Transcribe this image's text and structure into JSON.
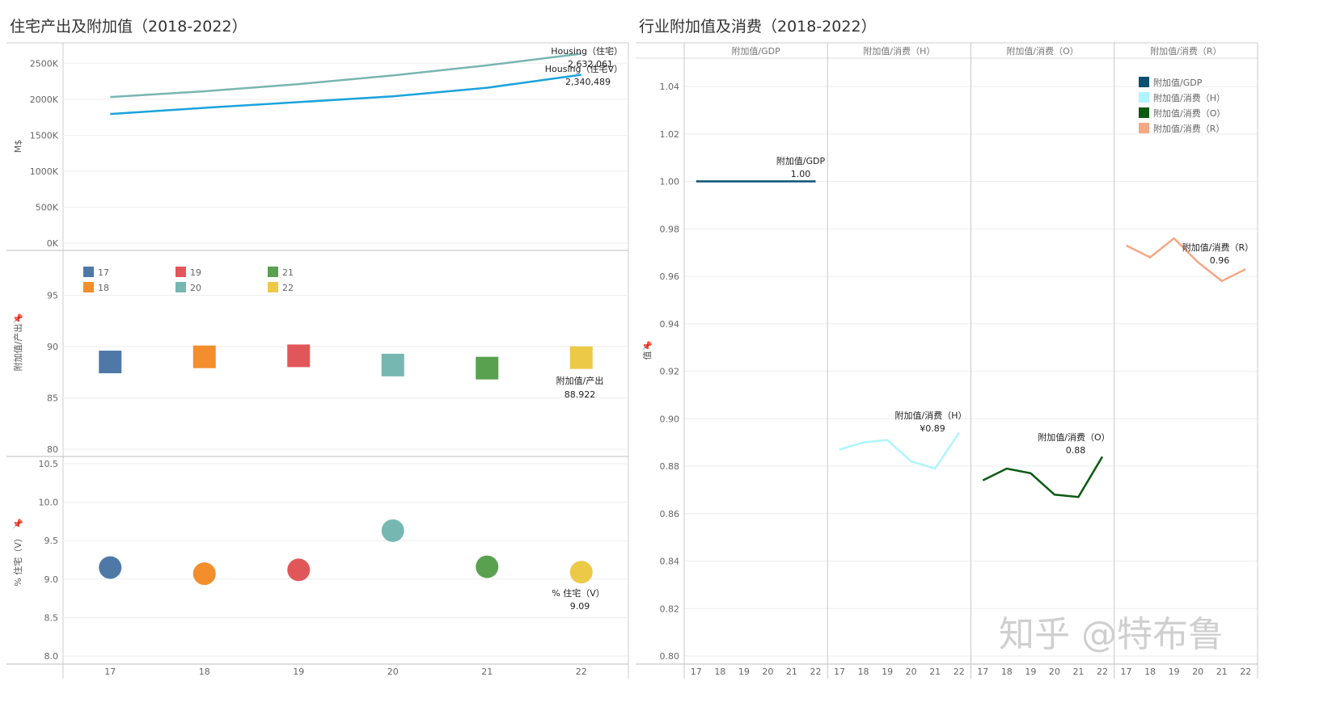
{
  "left_title": "住宅产出及附加值（2018-2022）",
  "right_title": "行业附加值及消费（2018-2022）",
  "watermark": "知乎 @特布鲁",
  "chart_data": [
    {
      "type": "line",
      "ylabel": "M$",
      "x": [
        "17",
        "18",
        "19",
        "20",
        "21",
        "22"
      ],
      "yticks": [
        "2500K",
        "2000K",
        "1500K",
        "1000K",
        "500K",
        "0K"
      ],
      "ylim": [
        0,
        2750
      ],
      "series": [
        {
          "name": "Housing（住宅）",
          "color": "#79b5b0",
          "values": [
            2030,
            2110,
            2210,
            2330,
            2470,
            2632.061
          ],
          "label_value": "2,632,061"
        },
        {
          "name": "Housing（住宅V）",
          "color": "#1aa2dc",
          "values": [
            1795,
            1880,
            1960,
            2040,
            2160,
            2340.489
          ],
          "label_value": "2,340,489"
        }
      ]
    },
    {
      "type": "scatter",
      "shape": "square",
      "ylabel": "附加值/产出",
      "x": [
        "17",
        "18",
        "19",
        "20",
        "21",
        "22"
      ],
      "yticks": [
        "95",
        "90",
        "85",
        "80"
      ],
      "ylim": [
        80,
        100
      ],
      "legend": [
        "17",
        "18",
        "19",
        "20",
        "21",
        "22"
      ],
      "colors": [
        "#4e79a7",
        "#f28e2b",
        "#e15759",
        "#76b7b2",
        "#59a14f",
        "#edc948"
      ],
      "values": [
        88.5,
        89.0,
        89.1,
        88.2,
        87.9,
        88.922
      ],
      "end_label": "附加值/产出",
      "end_value": "88.922"
    },
    {
      "type": "scatter",
      "shape": "circle",
      "ylabel": "% 住宅（V）",
      "x": [
        "17",
        "18",
        "19",
        "20",
        "21",
        "22"
      ],
      "xticks": [
        "17",
        "18",
        "19",
        "20",
        "21",
        "22"
      ],
      "yticks": [
        "10.5",
        "10.0",
        "9.5",
        "9.0",
        "8.5",
        "8.0"
      ],
      "ylim": [
        8.0,
        10.5
      ],
      "colors": [
        "#4e79a7",
        "#f28e2b",
        "#e15759",
        "#76b7b2",
        "#59a14f",
        "#edc948"
      ],
      "values": [
        9.15,
        9.07,
        9.12,
        9.63,
        9.16,
        9.09
      ],
      "end_label": "% 住宅（V）",
      "end_value": "9.09"
    },
    {
      "type": "line",
      "ylabel": "值",
      "yticks": [
        "1.04",
        "1.02",
        "1.00",
        "0.98",
        "0.96",
        "0.94",
        "0.92",
        "0.90",
        "0.88",
        "0.86",
        "0.84",
        "0.82",
        "0.80"
      ],
      "ylim": [
        0.8,
        1.055
      ],
      "x": [
        "17",
        "18",
        "19",
        "20",
        "21",
        "22"
      ],
      "panels": [
        "附加值/GDP",
        "附加值/消费（H）",
        "附加值/消费（O）",
        "附加值/消费（R）"
      ],
      "legend": [
        "附加值/GDP",
        "附加值/消费（H）",
        "附加值/消费（O）",
        "附加值/消费（R）"
      ],
      "legend_colors": [
        "#0b5070",
        "#aef5ff",
        "#0b5a12",
        "#f4a884"
      ],
      "series": [
        {
          "name": "附加值/GDP",
          "color": "#0b5070",
          "values": [
            1.0,
            1.0,
            1.0,
            1.0,
            1.0,
            1.0
          ],
          "label_value": "1.00"
        },
        {
          "name": "附加值/消费（H）",
          "color": "#aef5ff",
          "values": [
            0.887,
            0.89,
            0.891,
            0.882,
            0.879,
            0.894
          ],
          "label_value": "¥0.89"
        },
        {
          "name": "附加值/消费（O）",
          "color": "#0b5a12",
          "values": [
            0.874,
            0.879,
            0.877,
            0.868,
            0.867,
            0.884
          ],
          "label_value": "0.88"
        },
        {
          "name": "附加值/消费（R）",
          "color": "#f4a884",
          "values": [
            0.973,
            0.968,
            0.976,
            0.966,
            0.958,
            0.963
          ],
          "label_value": "0.96"
        }
      ]
    }
  ]
}
